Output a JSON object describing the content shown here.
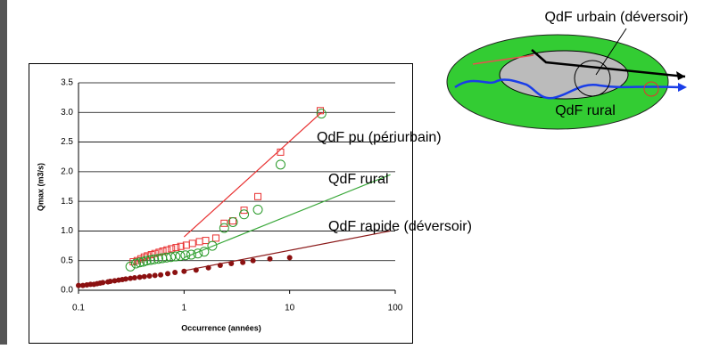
{
  "chart_data": {
    "type": "scatter",
    "xlabel": "Occurrence (années)",
    "ylabel": "Qmax (m3/s)",
    "xscale": "log",
    "xlim": [
      0.1,
      100
    ],
    "xticks": [
      0.1,
      1,
      10,
      100
    ],
    "ylim": [
      0,
      3.5
    ],
    "yticks": [
      {
        "value": 0,
        "label": "0.0"
      },
      0.5,
      {
        "value": 1,
        "label": "1.0"
      },
      1.5,
      {
        "value": 2,
        "label": "2.0"
      },
      2.5,
      {
        "value": 3,
        "label": "3.0"
      },
      3.5
    ],
    "grid": true,
    "series": [
      {
        "type": "scatter",
        "marker": "square",
        "color": "#e83030",
        "x": [
          0.33,
          0.36,
          0.39,
          0.42,
          0.45,
          0.49,
          0.53,
          0.58,
          0.63,
          0.69,
          0.76,
          0.84,
          0.93,
          1.05,
          1.2,
          1.4,
          1.6,
          2.0,
          2.4,
          2.9,
          3.7,
          5.0,
          8.2,
          19.5
        ],
        "values": [
          0.48,
          0.5,
          0.53,
          0.56,
          0.58,
          0.6,
          0.62,
          0.64,
          0.66,
          0.68,
          0.7,
          0.72,
          0.74,
          0.76,
          0.79,
          0.82,
          0.84,
          0.88,
          1.13,
          1.17,
          1.35,
          1.58,
          2.33,
          3.03
        ]
      },
      {
        "type": "scatter",
        "marker": "circle",
        "color": "#2a9a2a",
        "x": [
          0.31,
          0.35,
          0.38,
          0.41,
          0.44,
          0.48,
          0.52,
          0.57,
          0.62,
          0.68,
          0.75,
          0.83,
          0.92,
          1.03,
          1.17,
          1.35,
          1.55,
          1.85,
          2.4,
          2.9,
          3.7,
          5.0,
          8.2,
          20
        ],
        "values": [
          0.4,
          0.45,
          0.47,
          0.48,
          0.5,
          0.51,
          0.52,
          0.53,
          0.54,
          0.55,
          0.56,
          0.57,
          0.58,
          0.59,
          0.6,
          0.62,
          0.65,
          0.75,
          1.05,
          1.15,
          1.28,
          1.36,
          2.12,
          2.98
        ]
      },
      {
        "type": "scatter",
        "marker": "dot",
        "color": "#8b1010",
        "x": [
          0.1,
          0.11,
          0.12,
          0.13,
          0.14,
          0.15,
          0.16,
          0.17,
          0.19,
          0.2,
          0.22,
          0.24,
          0.26,
          0.28,
          0.31,
          0.34,
          0.38,
          0.42,
          0.47,
          0.53,
          0.6,
          0.7,
          0.82,
          1.0,
          1.3,
          1.7,
          2.2,
          2.8,
          3.6,
          4.5,
          6.5,
          10
        ],
        "values": [
          0.08,
          0.08,
          0.09,
          0.1,
          0.1,
          0.11,
          0.12,
          0.13,
          0.14,
          0.15,
          0.16,
          0.17,
          0.18,
          0.19,
          0.2,
          0.21,
          0.22,
          0.23,
          0.24,
          0.25,
          0.26,
          0.28,
          0.3,
          0.32,
          0.34,
          0.38,
          0.42,
          0.45,
          0.47,
          0.5,
          0.53,
          0.55
        ]
      },
      {
        "type": "line",
        "color": "#e83030",
        "x": [
          1,
          20
        ],
        "values": [
          0.9,
          3.0
        ]
      },
      {
        "type": "line",
        "color": "#3aa83a",
        "x": [
          1,
          90
        ],
        "values": [
          0.55,
          1.95
        ]
      },
      {
        "type": "line",
        "color": "#8b1a1a",
        "x": [
          1,
          90
        ],
        "values": [
          0.33,
          1.0
        ]
      }
    ],
    "annotations": [
      "QdF pu (périurbain)",
      "QdF rural",
      "QdF rapide (déversoir)"
    ]
  },
  "diagram": {
    "labels": [
      "QdF urbain (déversoir)",
      "QdF rural"
    ]
  }
}
